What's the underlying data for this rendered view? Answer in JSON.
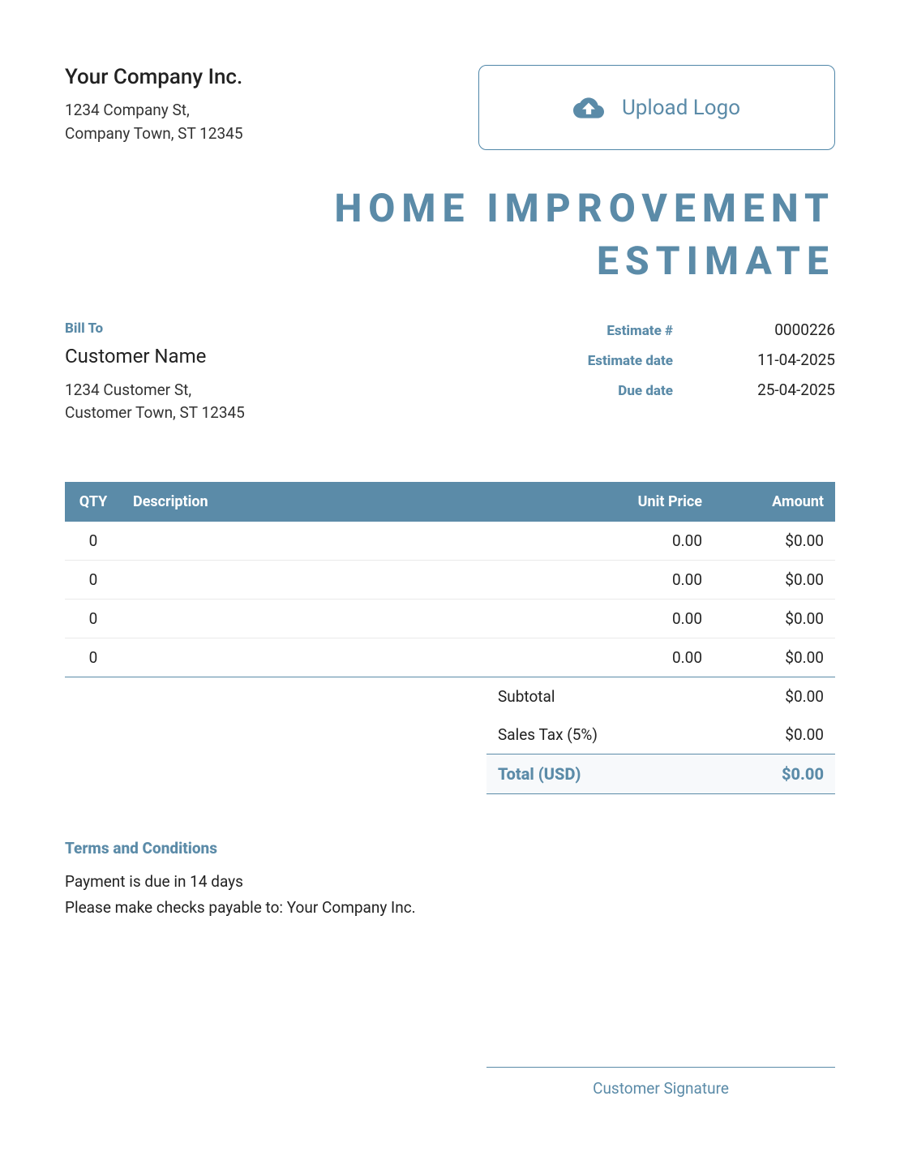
{
  "colors": {
    "accent": "#5b8ba8",
    "accent_border": "#5b8ba8",
    "upload_border": "#4f86a8",
    "text_dark": "#1a1a1a",
    "table_header_bg": "#5b8ba8",
    "rule": "#5b8ba8"
  },
  "company": {
    "name": "Your Company Inc.",
    "address_line1": "1234 Company St,",
    "address_line2": "Company Town, ST 12345"
  },
  "upload": {
    "label": "Upload Logo"
  },
  "title": {
    "line1": "HOME IMPROVEMENT",
    "line2": "ESTIMATE"
  },
  "bill_to": {
    "label": "Bill To",
    "name": "Customer Name",
    "address_line1": "1234 Customer St,",
    "address_line2": "Customer Town, ST 12345"
  },
  "estimate_meta": {
    "number_label": "Estimate #",
    "number_value": "0000226",
    "date_label": "Estimate date",
    "date_value": "11-04-2025",
    "due_label": "Due date",
    "due_value": "25-04-2025"
  },
  "table": {
    "headers": {
      "qty": "QTY",
      "desc": "Description",
      "unit": "Unit Price",
      "amt": "Amount"
    },
    "rows": [
      {
        "qty": "0",
        "desc": "",
        "unit": "0.00",
        "amt": "$0.00"
      },
      {
        "qty": "0",
        "desc": "",
        "unit": "0.00",
        "amt": "$0.00"
      },
      {
        "qty": "0",
        "desc": "",
        "unit": "0.00",
        "amt": "$0.00"
      },
      {
        "qty": "0",
        "desc": "",
        "unit": "0.00",
        "amt": "$0.00"
      }
    ]
  },
  "totals": {
    "subtotal_label": "Subtotal",
    "subtotal_value": "$0.00",
    "tax_label": "Sales Tax (5%)",
    "tax_value": "$0.00",
    "total_label": "Total (USD)",
    "total_value": "$0.00"
  },
  "terms": {
    "label": "Terms and Conditions",
    "line1": "Payment is due in 14 days",
    "line2": "Please make checks payable to: Your Company Inc."
  },
  "signature": {
    "label": "Customer Signature"
  }
}
